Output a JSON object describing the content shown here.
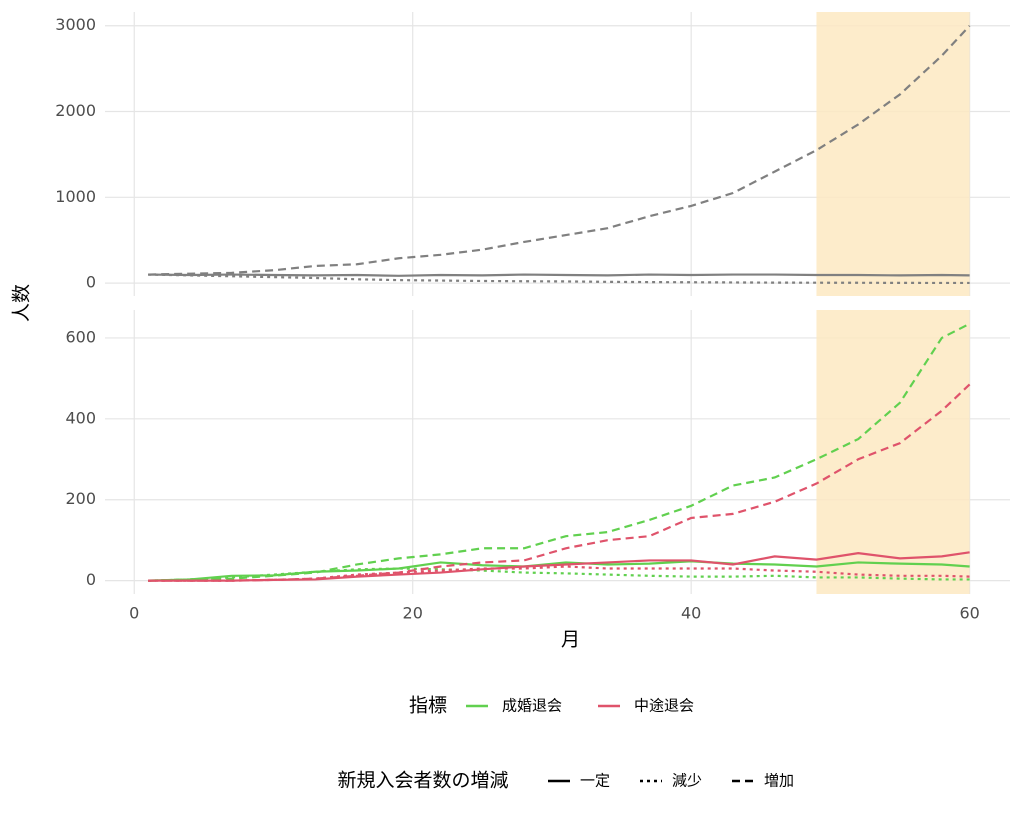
{
  "chart_data": [
    {
      "type": "line",
      "x": [
        1,
        4,
        7,
        10,
        13,
        16,
        19,
        22,
        25,
        28,
        31,
        34,
        37,
        40,
        43,
        46,
        49,
        52,
        55,
        58,
        60
      ],
      "xlim": [
        -2.1,
        62.9
      ],
      "xticks": [
        0,
        20,
        40,
        60
      ],
      "ylim": [
        -150,
        3160
      ],
      "yticks": [
        0,
        1000,
        2000,
        3000
      ],
      "highlight": [
        49,
        60
      ],
      "grid": true,
      "series": [
        {
          "color": "#808080",
          "linetype": "solid",
          "values": [
            100,
            95,
            100,
            95,
            90,
            95,
            85,
            95,
            90,
            100,
            95,
            90,
            100,
            95,
            100,
            100,
            95,
            95,
            90,
            95,
            90
          ]
        },
        {
          "color": "#808080",
          "linetype": "dotted",
          "values": [
            100,
            90,
            80,
            70,
            60,
            45,
            35,
            30,
            25,
            22,
            20,
            15,
            12,
            10,
            8,
            6,
            5,
            4,
            3,
            2,
            2
          ]
        },
        {
          "color": "#808080",
          "linetype": "dashed",
          "values": [
            100,
            110,
            120,
            150,
            200,
            220,
            290,
            330,
            390,
            480,
            560,
            640,
            780,
            900,
            1050,
            1300,
            1550,
            1850,
            2200,
            2650,
            3000
          ]
        }
      ]
    },
    {
      "type": "line",
      "x": [
        1,
        4,
        7,
        10,
        13,
        16,
        19,
        22,
        25,
        28,
        31,
        34,
        37,
        40,
        43,
        46,
        49,
        52,
        55,
        58,
        60
      ],
      "xlim": [
        -2.1,
        62.9
      ],
      "xticks": [
        0,
        20,
        40,
        60
      ],
      "ylim": [
        -33,
        669
      ],
      "yticks": [
        0,
        200,
        400,
        600
      ],
      "highlight": [
        49,
        60
      ],
      "grid": true,
      "xlabel": "月",
      "series": [
        {
          "color": "#61d04f",
          "linetype": "solid",
          "values": [
            0,
            3,
            12,
            13,
            22,
            25,
            30,
            45,
            38,
            35,
            45,
            40,
            42,
            48,
            42,
            40,
            35,
            45,
            42,
            40,
            35
          ]
        },
        {
          "color": "#61d04f",
          "linetype": "dotted",
          "values": [
            0,
            3,
            8,
            15,
            22,
            28,
            30,
            28,
            25,
            20,
            18,
            15,
            12,
            10,
            10,
            12,
            8,
            8,
            5,
            3,
            3
          ]
        },
        {
          "color": "#61d04f",
          "linetype": "dashed",
          "values": [
            0,
            3,
            5,
            12,
            20,
            40,
            55,
            65,
            80,
            80,
            110,
            120,
            150,
            185,
            235,
            255,
            300,
            350,
            440,
            600,
            635
          ]
        },
        {
          "color": "#df536b",
          "linetype": "solid",
          "values": [
            0,
            0,
            0,
            2,
            3,
            10,
            15,
            20,
            28,
            35,
            40,
            45,
            50,
            50,
            40,
            60,
            52,
            68,
            55,
            60,
            70
          ]
        },
        {
          "color": "#df536b",
          "linetype": "dotted",
          "values": [
            0,
            0,
            0,
            2,
            5,
            15,
            20,
            25,
            30,
            30,
            35,
            30,
            30,
            30,
            30,
            25,
            22,
            15,
            12,
            12,
            10
          ]
        },
        {
          "color": "#df536b",
          "linetype": "dashed",
          "values": [
            0,
            0,
            0,
            2,
            5,
            12,
            20,
            35,
            45,
            50,
            80,
            100,
            110,
            155,
            165,
            195,
            240,
            300,
            340,
            420,
            485
          ]
        }
      ]
    }
  ],
  "ylabel": "人数",
  "legend": {
    "color_title": "指標",
    "color_items": [
      {
        "name": "成婚退会",
        "color": "#61d04f"
      },
      {
        "name": "中途退会",
        "color": "#df536b"
      }
    ],
    "linetype_title": "新規入会者数の増減",
    "linetype_items": [
      {
        "name": "一定",
        "linetype": "solid"
      },
      {
        "name": "減少",
        "linetype": "dotted"
      },
      {
        "name": "増加",
        "linetype": "dashed"
      }
    ]
  }
}
